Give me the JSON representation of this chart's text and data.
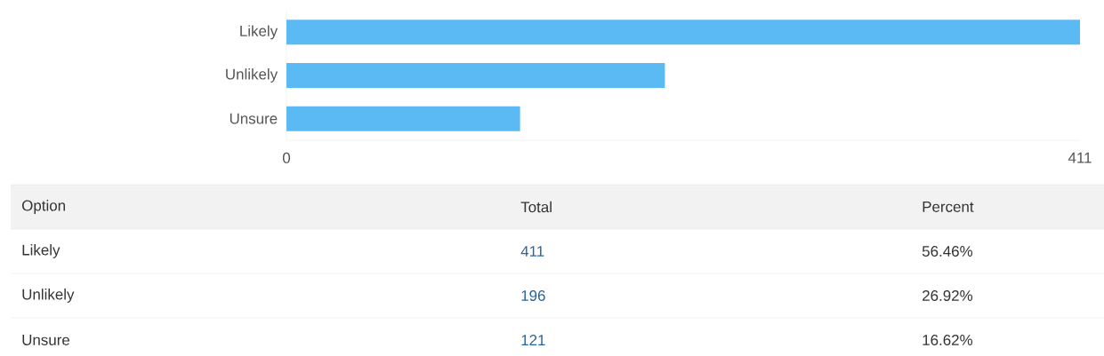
{
  "chart_data": {
    "type": "bar",
    "orientation": "horizontal",
    "categories": [
      "Likely",
      "Unlikely",
      "Unsure"
    ],
    "values": [
      411,
      196,
      121
    ],
    "color": "#5bb9f4",
    "xlim": [
      0,
      411
    ],
    "xticks": [
      0,
      411
    ],
    "annotations": [
      "Option",
      "Total",
      "Percent",
      "411",
      "56.46%",
      "196",
      "26.92%",
      "121",
      "16.62%"
    ]
  }
}
